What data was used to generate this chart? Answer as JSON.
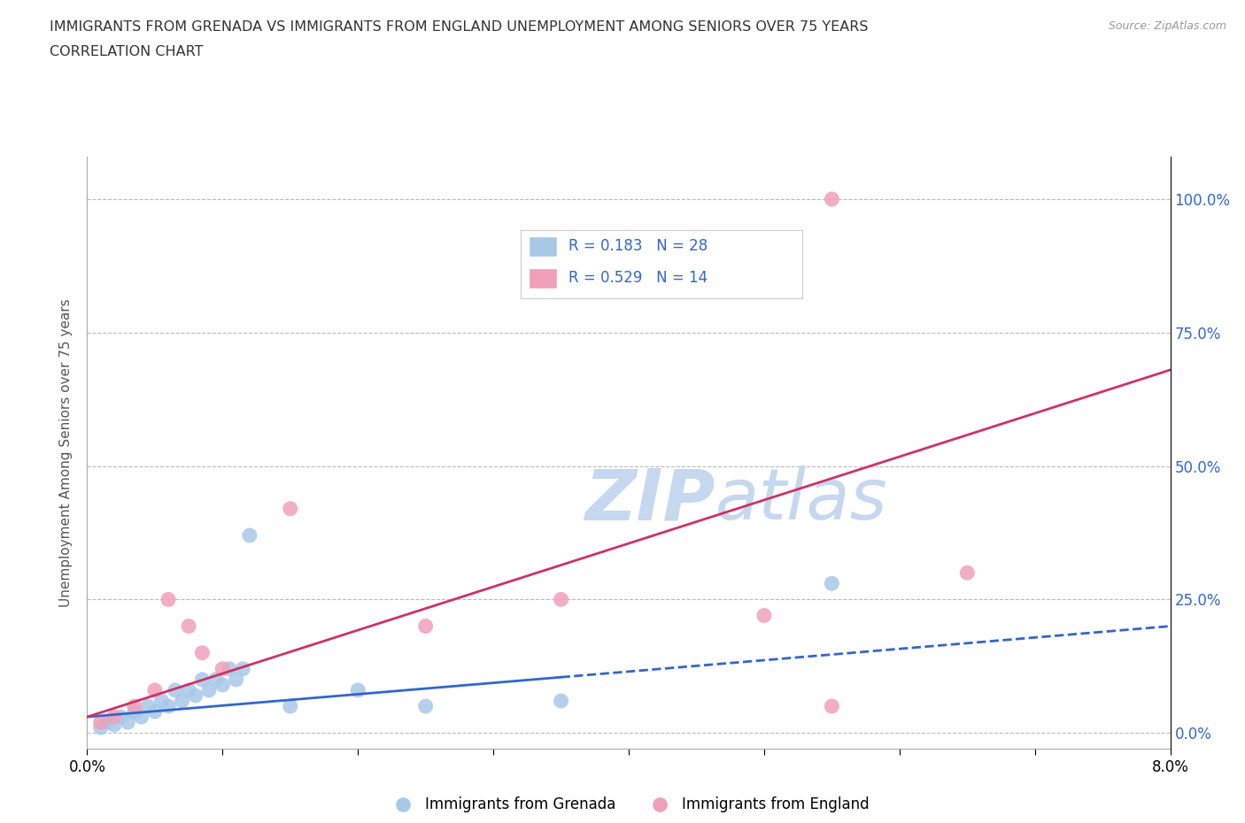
{
  "title_line1": "IMMIGRANTS FROM GRENADA VS IMMIGRANTS FROM ENGLAND UNEMPLOYMENT AMONG SENIORS OVER 75 YEARS",
  "title_line2": "CORRELATION CHART",
  "source": "Source: ZipAtlas.com",
  "ylabel": "Unemployment Among Seniors over 75 years",
  "legend_label1": "Immigrants from Grenada",
  "legend_label2": "Immigrants from England",
  "R1": 0.183,
  "N1": 28,
  "R2": 0.529,
  "N2": 14,
  "color_grenada": "#a8c8e8",
  "color_england": "#f0a0b8",
  "trend_color_grenada": "#3366cc",
  "trend_color_england": "#cc3366",
  "watermark_color": "#c5d8ef",
  "xlim": [
    0.0,
    8.0
  ],
  "ylim": [
    -3.0,
    108.0
  ],
  "yticks": [
    0,
    25,
    50,
    75,
    100
  ],
  "ytick_labels": [
    "0.0%",
    "25.0%",
    "50.0%",
    "75.0%",
    "100.0%"
  ],
  "xtick_positions": [
    0.0,
    1.0,
    2.0,
    3.0,
    4.0,
    5.0,
    6.0,
    7.0,
    8.0
  ],
  "xtick_labels": [
    "0.0%",
    "",
    "",
    "",
    "",
    "",
    "",
    "",
    "8.0%"
  ],
  "grenada_x": [
    0.1,
    0.15,
    0.2,
    0.25,
    0.3,
    0.35,
    0.4,
    0.45,
    0.5,
    0.55,
    0.6,
    0.65,
    0.7,
    0.75,
    0.8,
    0.85,
    0.9,
    0.95,
    1.0,
    1.05,
    1.1,
    1.15,
    1.2,
    1.5,
    2.0,
    2.5,
    3.5,
    5.5
  ],
  "grenada_y": [
    1,
    2,
    1.5,
    3,
    2,
    4,
    3,
    5,
    4,
    6,
    5,
    8,
    6,
    8,
    7,
    10,
    8,
    10,
    9,
    12,
    10,
    12,
    37,
    5,
    8,
    5,
    6,
    28
  ],
  "england_x": [
    0.1,
    0.2,
    0.35,
    0.5,
    0.6,
    0.75,
    0.85,
    1.0,
    1.5,
    2.5,
    3.5,
    5.0,
    5.5,
    6.5
  ],
  "england_y": [
    2,
    3,
    5,
    8,
    25,
    20,
    15,
    12,
    42,
    20,
    25,
    22,
    5,
    30
  ],
  "england_high_x": 5.5,
  "england_high_y": 100,
  "grenada_solid_end": 3.5,
  "england_solid_end": 8.0,
  "trend_grenada_y0": 3.0,
  "trend_grenada_y8": 20.0,
  "trend_england_y0": 3.0,
  "trend_england_y8": 68.0
}
